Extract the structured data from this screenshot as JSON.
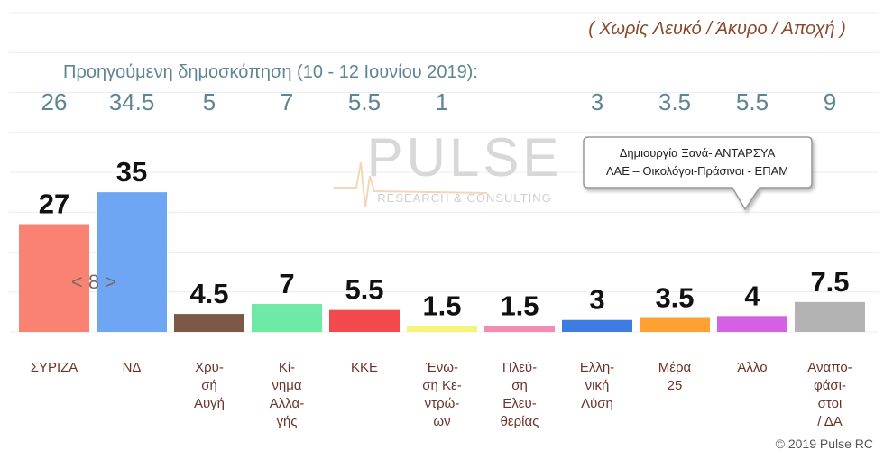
{
  "chart_data": {
    "type": "bar",
    "subtitle": "( Χωρίς Λευκό / Άκυρο / Αποχή )",
    "previous_title": "Προηγούμενη δημοσκόπηση (10 - 12 Ιουνίου 2019):",
    "categories": [
      "ΣΥΡΙΖΑ",
      "ΝΔ",
      "Χρυ-\nσή\nΑυγή",
      "Κί-\nνημα\nΑλλα-\nγής",
      "ΚΚΕ",
      "Ένω-\nση Κε-\nντρώ-\nων",
      "Πλεύ-\nση\nΕλευ-\nθερίας",
      "Ελλη-\nνική\nΛύση",
      "Μέρα\n25",
      "Άλλο",
      "Αναπο-\nφάσι-\nστοι\n/ ΔΑ"
    ],
    "values": [
      27,
      35,
      4.5,
      7,
      5.5,
      1.5,
      1.5,
      3,
      3.5,
      4,
      7.5
    ],
    "colors": [
      "#f98273",
      "#6fa6f4",
      "#7b5848",
      "#6eeaa6",
      "#f24a4c",
      "#f6f47c",
      "#f48bb4",
      "#3d7de2",
      "#ffa033",
      "#d461e4",
      "#b3b3b3"
    ],
    "previous_values": [
      26,
      34.5,
      5,
      7,
      5.5,
      1,
      null,
      3,
      3.5,
      5.5,
      9
    ],
    "ylim": [
      0,
      80
    ],
    "yticks": [
      0,
      10,
      20,
      30,
      40,
      50,
      60,
      70,
      80
    ],
    "grid": true,
    "annotation": [
      "Δημιουργία Ξανά-  ΑΝΤΑΡΣΥΑ",
      "ΛΑΕ – Οικολόγοι-Πράσινοι - ΕΠΑΜ"
    ],
    "watermark": {
      "title": "PULSE",
      "subtitle": "RESEARCH & CONSULTING"
    },
    "carousel": "< 8 >",
    "copyright": "© 2019 Pulse RC"
  }
}
